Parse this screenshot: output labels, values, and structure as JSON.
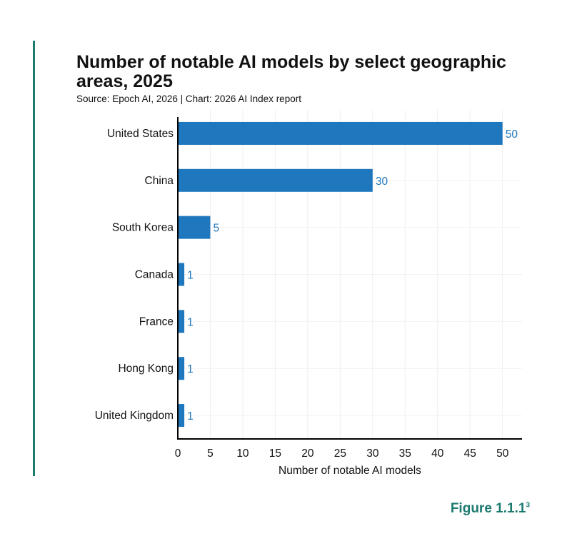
{
  "chart_data": {
    "type": "bar",
    "orientation": "horizontal",
    "title": "Number of notable AI models by select geographic areas, 2025",
    "subtitle": "Source: Epoch AI, 2026 | Chart: 2026 AI Index report",
    "categories": [
      "United States",
      "China",
      "South Korea",
      "Canada",
      "France",
      "Hong Kong",
      "United Kingdom"
    ],
    "values": [
      50,
      30,
      5,
      1,
      1,
      1,
      1
    ],
    "xlabel": "Number of notable AI models",
    "ylabel": "",
    "xlim": [
      0,
      53
    ],
    "xticks": [
      0,
      5,
      10,
      15,
      20,
      25,
      30,
      35,
      40,
      45,
      50
    ],
    "grid": true,
    "bar_color": "#1f77bd",
    "label_color": "#1f77bd"
  },
  "figure_label": "Figure 1.1.1",
  "figure_footnote": "3",
  "accent_color": "#1c7a70"
}
